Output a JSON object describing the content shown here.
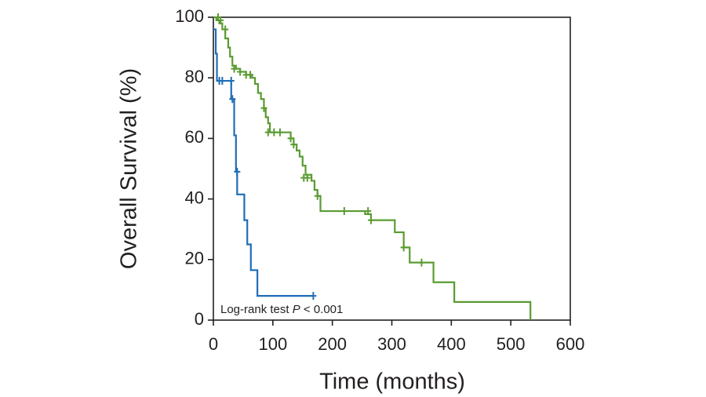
{
  "chart_data": {
    "type": "step",
    "xlabel": "Time (months)",
    "ylabel": "Overall Survival (%)",
    "annotation": [
      "Log-rank test ",
      "P",
      " < 0.001"
    ],
    "xlim": [
      0,
      600
    ],
    "xticks": [
      0,
      100,
      200,
      300,
      400,
      500,
      600
    ],
    "ylim": [
      0,
      100
    ],
    "yticks": [
      0,
      20,
      40,
      60,
      80,
      100
    ],
    "grid": false,
    "series": [
      {
        "color": "#1f6db5",
        "x": [
          0,
          4,
          6,
          30,
          35,
          38,
          40,
          52,
          57,
          63,
          74,
          168
        ],
        "values": [
          96,
          88,
          79,
          73,
          61,
          49,
          41.5,
          33,
          25,
          16.5,
          8,
          8
        ],
        "censor_x": [
          10,
          15,
          30,
          32,
          40,
          168
        ],
        "censor_values": [
          79,
          79,
          79,
          73,
          49,
          8
        ]
      },
      {
        "color": "#5a9b32",
        "x": [
          0,
          5,
          10,
          15,
          20,
          25,
          28,
          32,
          38,
          45,
          55,
          65,
          70,
          75,
          80,
          85,
          88,
          92,
          95,
          120,
          130,
          135,
          140,
          145,
          150,
          155,
          165,
          170,
          175,
          180,
          245,
          255,
          265,
          300,
          305,
          320,
          330,
          360,
          370,
          402,
          405,
          533,
          533
        ],
        "values": [
          100,
          99,
          98,
          96,
          93,
          90,
          87,
          84,
          83,
          82,
          81,
          80,
          78,
          75,
          73,
          70,
          67,
          65,
          62,
          62,
          60,
          58,
          56,
          54,
          51,
          48,
          46,
          43,
          41,
          36,
          36,
          35,
          33,
          33,
          29,
          24,
          19,
          19,
          12.5,
          12.5,
          6,
          6,
          0
        ],
        "censor_x": [
          8,
          12,
          20,
          35,
          45,
          55,
          62,
          85,
          92,
          102,
          112,
          130,
          135,
          152,
          158,
          175,
          220,
          260,
          265,
          320,
          350
        ],
        "censor_values": [
          100,
          99,
          96,
          83,
          82,
          81,
          81,
          70,
          62,
          62,
          62,
          60,
          58,
          47,
          47,
          41,
          36,
          36,
          33,
          24,
          19
        ]
      }
    ]
  }
}
